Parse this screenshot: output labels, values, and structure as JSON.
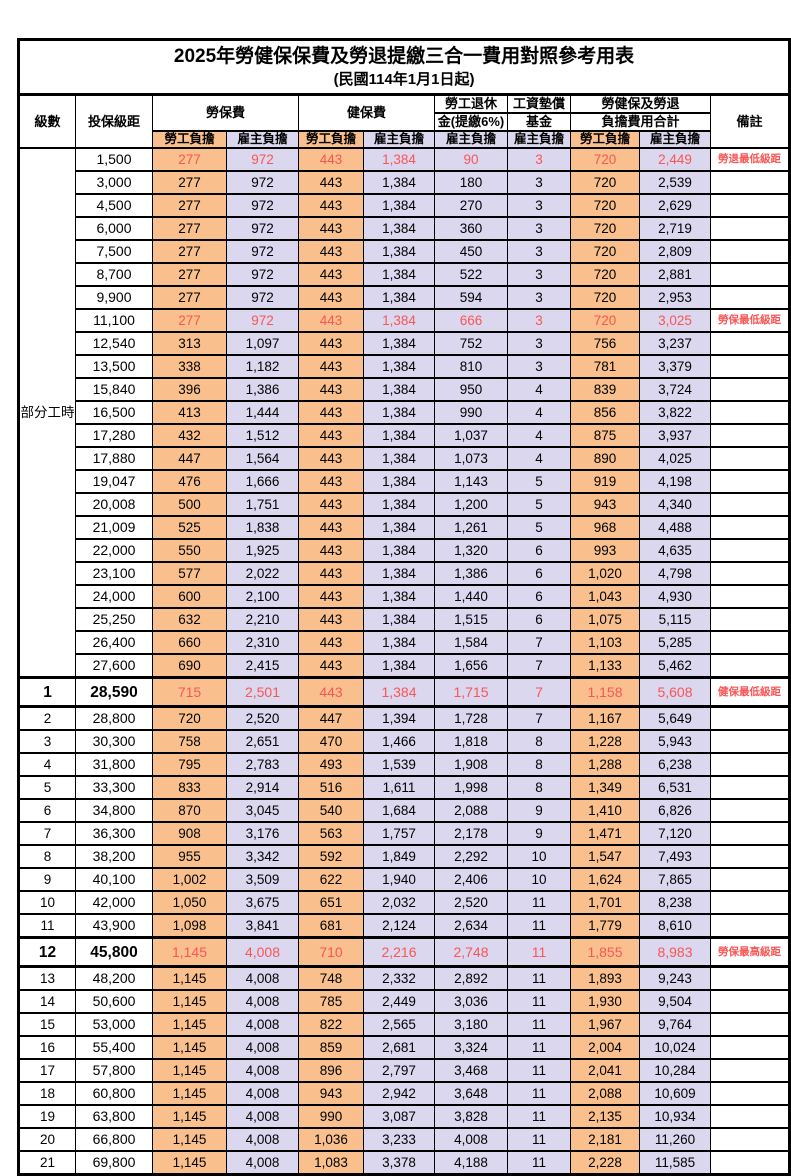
{
  "title": "2025年勞健保保費及勞退提繳三合一費用對照參考用表",
  "subtitle": "(民國114年1月1日起)",
  "header": {
    "level": "級數",
    "salary_bracket": "投保級距",
    "labor_insurance": "勞保費",
    "health_insurance": "健保費",
    "pension_line1": "勞工退休",
    "pension_line2": "金(提繳6%)",
    "wage_fund_line1": "工資墊償",
    "wage_fund_line2": "基金",
    "total_line1": "勞健保及勞退",
    "total_line2": "負擔費用合計",
    "employee_burden": "勞工負擔",
    "employer_burden": "雇主負擔",
    "remarks": "備註"
  },
  "part_time_label": "部分工時",
  "part_time_span": 23,
  "colors": {
    "employee_fill": "#F9C08E",
    "employer_fill": "#DBD7EF",
    "highlight_red": "#FA5555",
    "border": "#000000"
  },
  "rows": [
    {
      "level": "",
      "salary": "1,500",
      "v": [
        "277",
        "972",
        "443",
        "1,384",
        "90",
        "3",
        "720",
        "2,449"
      ],
      "note": "勞退最低級距",
      "red": true,
      "em": false
    },
    {
      "level": "",
      "salary": "3,000",
      "v": [
        "277",
        "972",
        "443",
        "1,384",
        "180",
        "3",
        "720",
        "2,539"
      ],
      "note": "",
      "red": false,
      "em": false
    },
    {
      "level": "",
      "salary": "4,500",
      "v": [
        "277",
        "972",
        "443",
        "1,384",
        "270",
        "3",
        "720",
        "2,629"
      ],
      "note": "",
      "red": false,
      "em": false
    },
    {
      "level": "",
      "salary": "6,000",
      "v": [
        "277",
        "972",
        "443",
        "1,384",
        "360",
        "3",
        "720",
        "2,719"
      ],
      "note": "",
      "red": false,
      "em": false
    },
    {
      "level": "",
      "salary": "7,500",
      "v": [
        "277",
        "972",
        "443",
        "1,384",
        "450",
        "3",
        "720",
        "2,809"
      ],
      "note": "",
      "red": false,
      "em": false
    },
    {
      "level": "",
      "salary": "8,700",
      "v": [
        "277",
        "972",
        "443",
        "1,384",
        "522",
        "3",
        "720",
        "2,881"
      ],
      "note": "",
      "red": false,
      "em": false
    },
    {
      "level": "",
      "salary": "9,900",
      "v": [
        "277",
        "972",
        "443",
        "1,384",
        "594",
        "3",
        "720",
        "2,953"
      ],
      "note": "",
      "red": false,
      "em": false
    },
    {
      "level": "",
      "salary": "11,100",
      "v": [
        "277",
        "972",
        "443",
        "1,384",
        "666",
        "3",
        "720",
        "3,025"
      ],
      "note": "勞保最低級距",
      "red": true,
      "em": false
    },
    {
      "level": "",
      "salary": "12,540",
      "v": [
        "313",
        "1,097",
        "443",
        "1,384",
        "752",
        "3",
        "756",
        "3,237"
      ],
      "note": "",
      "red": false,
      "em": false
    },
    {
      "level": "",
      "salary": "13,500",
      "v": [
        "338",
        "1,182",
        "443",
        "1,384",
        "810",
        "3",
        "781",
        "3,379"
      ],
      "note": "",
      "red": false,
      "em": false
    },
    {
      "level": "",
      "salary": "15,840",
      "v": [
        "396",
        "1,386",
        "443",
        "1,384",
        "950",
        "4",
        "839",
        "3,724"
      ],
      "note": "",
      "red": false,
      "em": false
    },
    {
      "level": "",
      "salary": "16,500",
      "v": [
        "413",
        "1,444",
        "443",
        "1,384",
        "990",
        "4",
        "856",
        "3,822"
      ],
      "note": "",
      "red": false,
      "em": false
    },
    {
      "level": "",
      "salary": "17,280",
      "v": [
        "432",
        "1,512",
        "443",
        "1,384",
        "1,037",
        "4",
        "875",
        "3,937"
      ],
      "note": "",
      "red": false,
      "em": false
    },
    {
      "level": "",
      "salary": "17,880",
      "v": [
        "447",
        "1,564",
        "443",
        "1,384",
        "1,073",
        "4",
        "890",
        "4,025"
      ],
      "note": "",
      "red": false,
      "em": false
    },
    {
      "level": "",
      "salary": "19,047",
      "v": [
        "476",
        "1,666",
        "443",
        "1,384",
        "1,143",
        "5",
        "919",
        "4,198"
      ],
      "note": "",
      "red": false,
      "em": false
    },
    {
      "level": "",
      "salary": "20,008",
      "v": [
        "500",
        "1,751",
        "443",
        "1,384",
        "1,200",
        "5",
        "943",
        "4,340"
      ],
      "note": "",
      "red": false,
      "em": false
    },
    {
      "level": "",
      "salary": "21,009",
      "v": [
        "525",
        "1,838",
        "443",
        "1,384",
        "1,261",
        "5",
        "968",
        "4,488"
      ],
      "note": "",
      "red": false,
      "em": false
    },
    {
      "level": "",
      "salary": "22,000",
      "v": [
        "550",
        "1,925",
        "443",
        "1,384",
        "1,320",
        "6",
        "993",
        "4,635"
      ],
      "note": "",
      "red": false,
      "em": false
    },
    {
      "level": "",
      "salary": "23,100",
      "v": [
        "577",
        "2,022",
        "443",
        "1,384",
        "1,386",
        "6",
        "1,020",
        "4,798"
      ],
      "note": "",
      "red": false,
      "em": false
    },
    {
      "level": "",
      "salary": "24,000",
      "v": [
        "600",
        "2,100",
        "443",
        "1,384",
        "1,440",
        "6",
        "1,043",
        "4,930"
      ],
      "note": "",
      "red": false,
      "em": false
    },
    {
      "level": "",
      "salary": "25,250",
      "v": [
        "632",
        "2,210",
        "443",
        "1,384",
        "1,515",
        "6",
        "1,075",
        "5,115"
      ],
      "note": "",
      "red": false,
      "em": false
    },
    {
      "level": "",
      "salary": "26,400",
      "v": [
        "660",
        "2,310",
        "443",
        "1,384",
        "1,584",
        "7",
        "1,103",
        "5,285"
      ],
      "note": "",
      "red": false,
      "em": false
    },
    {
      "level": "",
      "salary": "27,600",
      "v": [
        "690",
        "2,415",
        "443",
        "1,384",
        "1,656",
        "7",
        "1,133",
        "5,462"
      ],
      "note": "",
      "red": false,
      "em": false
    },
    {
      "level": "1",
      "salary": "28,590",
      "v": [
        "715",
        "2,501",
        "443",
        "1,384",
        "1,715",
        "7",
        "1,158",
        "5,608"
      ],
      "note": "健保最低級距",
      "red": true,
      "em": true
    },
    {
      "level": "2",
      "salary": "28,800",
      "v": [
        "720",
        "2,520",
        "447",
        "1,394",
        "1,728",
        "7",
        "1,167",
        "5,649"
      ],
      "note": "",
      "red": false,
      "em": false
    },
    {
      "level": "3",
      "salary": "30,300",
      "v": [
        "758",
        "2,651",
        "470",
        "1,466",
        "1,818",
        "8",
        "1,228",
        "5,943"
      ],
      "note": "",
      "red": false,
      "em": false
    },
    {
      "level": "4",
      "salary": "31,800",
      "v": [
        "795",
        "2,783",
        "493",
        "1,539",
        "1,908",
        "8",
        "1,288",
        "6,238"
      ],
      "note": "",
      "red": false,
      "em": false
    },
    {
      "level": "5",
      "salary": "33,300",
      "v": [
        "833",
        "2,914",
        "516",
        "1,611",
        "1,998",
        "8",
        "1,349",
        "6,531"
      ],
      "note": "",
      "red": false,
      "em": false
    },
    {
      "level": "6",
      "salary": "34,800",
      "v": [
        "870",
        "3,045",
        "540",
        "1,684",
        "2,088",
        "9",
        "1,410",
        "6,826"
      ],
      "note": "",
      "red": false,
      "em": false
    },
    {
      "level": "7",
      "salary": "36,300",
      "v": [
        "908",
        "3,176",
        "563",
        "1,757",
        "2,178",
        "9",
        "1,471",
        "7,120"
      ],
      "note": "",
      "red": false,
      "em": false
    },
    {
      "level": "8",
      "salary": "38,200",
      "v": [
        "955",
        "3,342",
        "592",
        "1,849",
        "2,292",
        "10",
        "1,547",
        "7,493"
      ],
      "note": "",
      "red": false,
      "em": false
    },
    {
      "level": "9",
      "salary": "40,100",
      "v": [
        "1,002",
        "3,509",
        "622",
        "1,940",
        "2,406",
        "10",
        "1,624",
        "7,865"
      ],
      "note": "",
      "red": false,
      "em": false
    },
    {
      "level": "10",
      "salary": "42,000",
      "v": [
        "1,050",
        "3,675",
        "651",
        "2,032",
        "2,520",
        "11",
        "1,701",
        "8,238"
      ],
      "note": "",
      "red": false,
      "em": false
    },
    {
      "level": "11",
      "salary": "43,900",
      "v": [
        "1,098",
        "3,841",
        "681",
        "2,124",
        "2,634",
        "11",
        "1,779",
        "8,610"
      ],
      "note": "",
      "red": false,
      "em": false
    },
    {
      "level": "12",
      "salary": "45,800",
      "v": [
        "1,145",
        "4,008",
        "710",
        "2,216",
        "2,748",
        "11",
        "1,855",
        "8,983"
      ],
      "note": "勞保最高級距",
      "red": true,
      "em": true
    },
    {
      "level": "13",
      "salary": "48,200",
      "v": [
        "1,145",
        "4,008",
        "748",
        "2,332",
        "2,892",
        "11",
        "1,893",
        "9,243"
      ],
      "note": "",
      "red": false,
      "em": false
    },
    {
      "level": "14",
      "salary": "50,600",
      "v": [
        "1,145",
        "4,008",
        "785",
        "2,449",
        "3,036",
        "11",
        "1,930",
        "9,504"
      ],
      "note": "",
      "red": false,
      "em": false
    },
    {
      "level": "15",
      "salary": "53,000",
      "v": [
        "1,145",
        "4,008",
        "822",
        "2,565",
        "3,180",
        "11",
        "1,967",
        "9,764"
      ],
      "note": "",
      "red": false,
      "em": false
    },
    {
      "level": "16",
      "salary": "55,400",
      "v": [
        "1,145",
        "4,008",
        "859",
        "2,681",
        "3,324",
        "11",
        "2,004",
        "10,024"
      ],
      "note": "",
      "red": false,
      "em": false
    },
    {
      "level": "17",
      "salary": "57,800",
      "v": [
        "1,145",
        "4,008",
        "896",
        "2,797",
        "3,468",
        "11",
        "2,041",
        "10,284"
      ],
      "note": "",
      "red": false,
      "em": false
    },
    {
      "level": "18",
      "salary": "60,800",
      "v": [
        "1,145",
        "4,008",
        "943",
        "2,942",
        "3,648",
        "11",
        "2,088",
        "10,609"
      ],
      "note": "",
      "red": false,
      "em": false
    },
    {
      "level": "19",
      "salary": "63,800",
      "v": [
        "1,145",
        "4,008",
        "990",
        "3,087",
        "3,828",
        "11",
        "2,135",
        "10,934"
      ],
      "note": "",
      "red": false,
      "em": false
    },
    {
      "level": "20",
      "salary": "66,800",
      "v": [
        "1,145",
        "4,008",
        "1,036",
        "3,233",
        "4,008",
        "11",
        "2,181",
        "11,260"
      ],
      "note": "",
      "red": false,
      "em": false
    },
    {
      "level": "21",
      "salary": "69,800",
      "v": [
        "1,145",
        "4,008",
        "1,083",
        "3,378",
        "4,188",
        "11",
        "2,228",
        "11,585"
      ],
      "note": "",
      "red": false,
      "em": false
    }
  ]
}
